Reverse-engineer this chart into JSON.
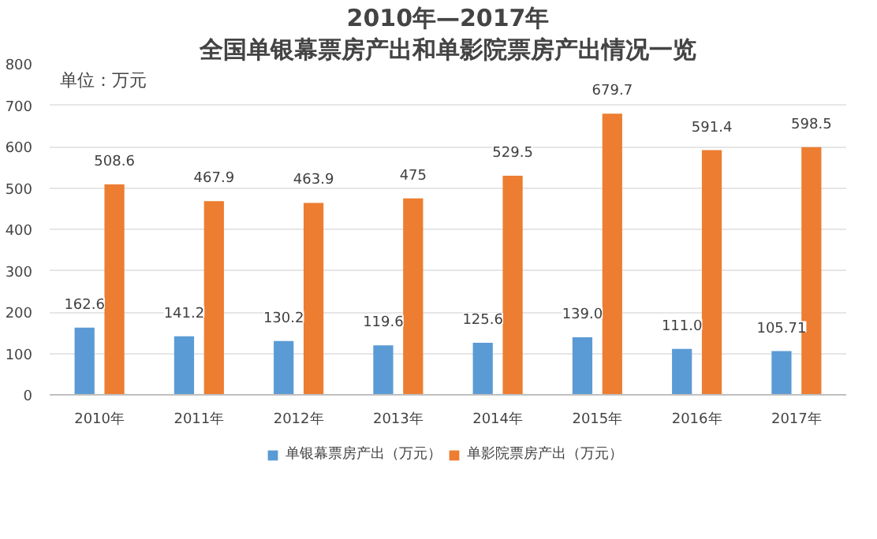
{
  "chart_data": {
    "type": "bar",
    "title": "2010年—2017年",
    "subtitle": "全国单银幕票房产出和单影院票房产出情况一览",
    "categories": [
      "2010年",
      "2011年",
      "2012年",
      "2013年",
      "2014年",
      "2015年",
      "2016年",
      "2017年"
    ],
    "series": [
      {
        "name": "单银幕票房产出（万元）",
        "color": "#5b9bd5",
        "values": [
          162.6,
          141.2,
          130.2,
          119.6,
          125.6,
          139.0,
          111.0,
          105.71
        ],
        "value_labels": [
          "162.6",
          "141.2",
          "130.2",
          "119.6",
          "125.6",
          "139.0",
          "111.0",
          "105.71"
        ]
      },
      {
        "name": "单影院票房产出（万元）",
        "color": "#ed7d31",
        "values": [
          508.6,
          467.9,
          463.9,
          475,
          529.5,
          679.7,
          591.4,
          598.5
        ],
        "value_labels": [
          "508.6",
          "467.9",
          "463.9",
          "475",
          "529.5",
          "679.7",
          "591.4",
          "598.5"
        ]
      }
    ],
    "ylim": [
      0,
      800
    ],
    "yticks": [
      0,
      100,
      200,
      300,
      400,
      500,
      600,
      700,
      800
    ],
    "grid": "y",
    "legend": "bottom",
    "annotations": [
      "单位：万元"
    ]
  }
}
